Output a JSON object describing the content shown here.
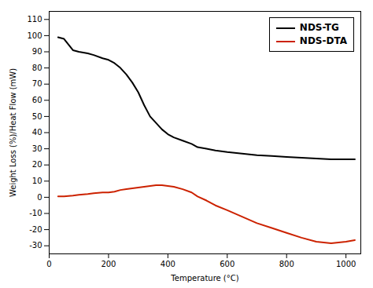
{
  "chart_data": {
    "type": "line",
    "xlabel": "Temperature (°C)",
    "ylabel": "Weight Loss (%)/Heat Flow (mW)",
    "xlim": [
      0,
      1050
    ],
    "ylim": [
      -35,
      115
    ],
    "xticks": [
      0,
      200,
      400,
      600,
      800,
      1000
    ],
    "yticks": [
      -30,
      -20,
      -10,
      0,
      10,
      20,
      30,
      40,
      50,
      60,
      70,
      80,
      90,
      100,
      110
    ],
    "x": [
      30,
      50,
      80,
      100,
      130,
      150,
      180,
      200,
      220,
      240,
      260,
      280,
      300,
      320,
      340,
      360,
      380,
      400,
      420,
      450,
      480,
      500,
      530,
      560,
      600,
      650,
      700,
      750,
      800,
      850,
      900,
      950,
      1000,
      1030
    ],
    "series": [
      {
        "name": "NDS-TG",
        "color": "#000000",
        "values": [
          99,
          98,
          91,
          90,
          89,
          88,
          86,
          85,
          83,
          80,
          76,
          71,
          65,
          57,
          50,
          46,
          42,
          39,
          37,
          35,
          33,
          31,
          30,
          29,
          28,
          27,
          26,
          25.5,
          25,
          24.5,
          24,
          23.5,
          23.5,
          23.5
        ]
      },
      {
        "name": "NDS-DTA",
        "color": "#cc2200",
        "values": [
          0.5,
          0.5,
          1.0,
          1.5,
          2.0,
          2.5,
          3.0,
          3.0,
          3.5,
          4.5,
          5.0,
          5.5,
          6.0,
          6.5,
          7.0,
          7.5,
          7.5,
          7.0,
          6.5,
          5.0,
          3.0,
          0.5,
          -2.0,
          -5.0,
          -8.0,
          -12.0,
          -16.0,
          -19.0,
          -22.0,
          -25.0,
          -27.5,
          -28.5,
          -27.5,
          -26.5
        ]
      }
    ],
    "legend": "upper right",
    "grid": false
  }
}
